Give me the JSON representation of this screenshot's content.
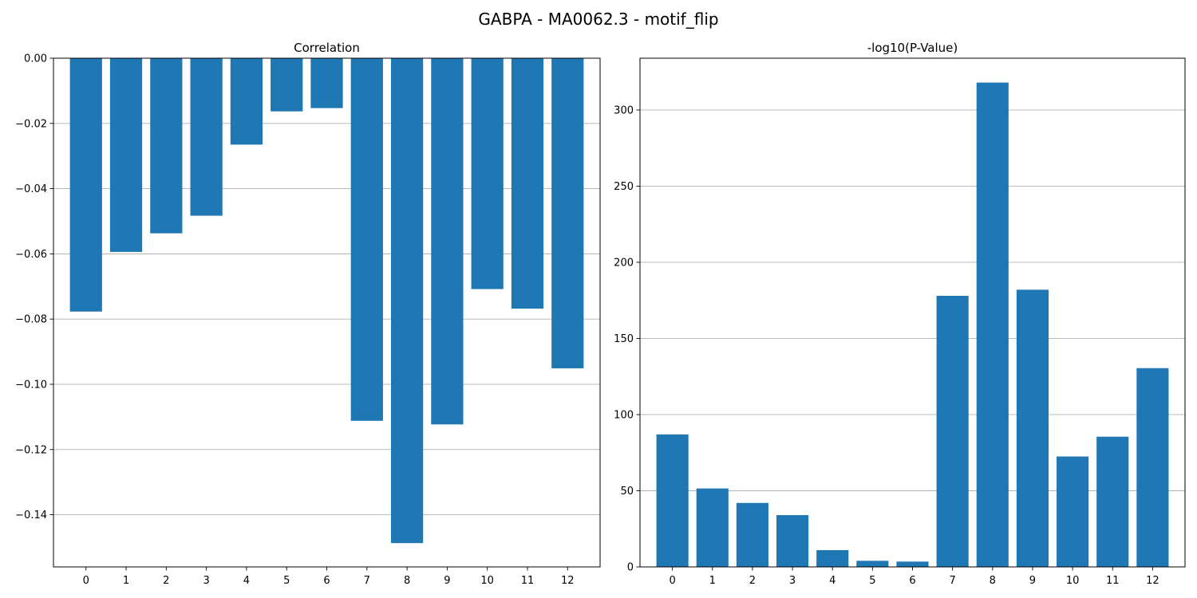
{
  "figure": {
    "title": "GABPA - MA0062.3 - motif_flip"
  },
  "colors": {
    "bar": "#1f77b4",
    "grid": "#b0b0b0"
  },
  "chart_data": [
    {
      "type": "bar",
      "title": "Correlation",
      "categories": [
        "0",
        "1",
        "2",
        "3",
        "4",
        "5",
        "6",
        "7",
        "8",
        "9",
        "10",
        "11",
        "12"
      ],
      "values": [
        -0.0777,
        -0.0594,
        -0.0537,
        -0.0483,
        -0.0265,
        -0.0163,
        -0.0153,
        -0.1112,
        -0.1487,
        -0.1123,
        -0.0708,
        -0.0768,
        -0.0951
      ],
      "ylim": [
        -0.156,
        0.0
      ],
      "yticks": [
        0.0,
        -0.02,
        -0.04,
        -0.06,
        -0.08,
        -0.1,
        -0.12,
        -0.14
      ],
      "ytick_labels": [
        "0.00",
        "−0.02",
        "−0.04",
        "−0.06",
        "−0.08",
        "−0.10",
        "−0.12",
        "−0.14"
      ],
      "grid": "y"
    },
    {
      "type": "bar",
      "title": "-log10(P-Value)",
      "categories": [
        "0",
        "1",
        "2",
        "3",
        "4",
        "5",
        "6",
        "7",
        "8",
        "9",
        "10",
        "11",
        "12"
      ],
      "values": [
        87,
        51.5,
        42,
        34,
        11,
        4,
        3.5,
        178,
        318,
        182,
        72.5,
        85.5,
        130.5
      ],
      "ylim": [
        0,
        334
      ],
      "yticks": [
        0,
        50,
        100,
        150,
        200,
        250,
        300
      ],
      "ytick_labels": [
        "0",
        "50",
        "100",
        "150",
        "200",
        "250",
        "300"
      ],
      "grid": "y"
    }
  ]
}
